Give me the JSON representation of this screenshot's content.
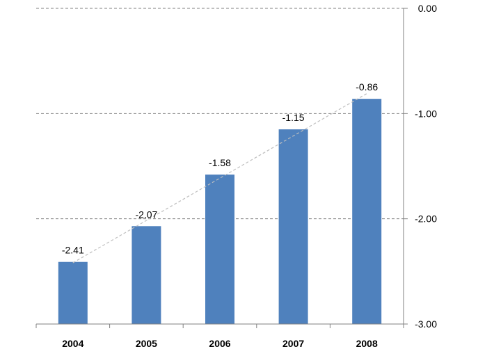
{
  "chart_data": {
    "type": "bar",
    "categories": [
      "2004",
      "2005",
      "2006",
      "2007",
      "2008"
    ],
    "values": [
      -2.41,
      -2.07,
      -1.58,
      -1.15,
      -0.86
    ],
    "data_labels": [
      "-2.41",
      "-2.07",
      "-1.58",
      "-1.15",
      "-0.86"
    ],
    "y_tick_labels": [
      "0.00",
      "-1.00",
      "-2.00",
      "-3.00"
    ],
    "y_ticks": [
      0,
      -1,
      -2,
      -3
    ],
    "ylim": [
      -3,
      0
    ],
    "y_axis_side": "right",
    "grid": true,
    "trendline": "linear",
    "colors": {
      "bar": "#4F81BD",
      "grid": "#7F7F7F",
      "axis": "#808080",
      "trendline": "#BFBFBF"
    }
  }
}
